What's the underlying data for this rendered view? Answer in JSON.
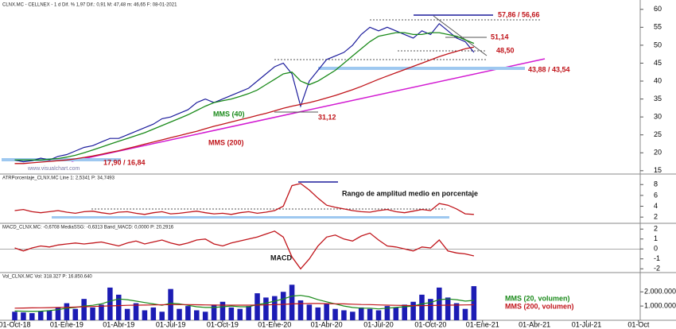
{
  "chart_data": [
    {
      "type": "line",
      "title": "CLNX.MC - CELLNEX - 1 d  Dif. % 1,97  Dif.: 0,91  M: 47,48  m: 46,65  F: 08-01-2021",
      "watermark": "www.visualchart.com",
      "ylim": [
        14.3,
        61.5
      ],
      "yticks": [
        15,
        20,
        25,
        30,
        35,
        40,
        45,
        50,
        55,
        60
      ],
      "annotations": [
        {
          "text": "57,86 / 56,66"
        },
        {
          "text": "51,14"
        },
        {
          "text": "48,50"
        },
        {
          "text": "43,88 / 43,54"
        },
        {
          "text": "31,12"
        },
        {
          "text": "17,90 / 16,84"
        },
        {
          "text": "MMS (40)"
        },
        {
          "text": "MMS (200)"
        }
      ],
      "series": [
        {
          "name": "CLNX.MC",
          "color": "#1c1c9c",
          "values": [
            18,
            17.5,
            17.8,
            18.5,
            18,
            19,
            19.5,
            20.5,
            21.5,
            22,
            23,
            24,
            24,
            25,
            26,
            27,
            28,
            29.5,
            30,
            31,
            32,
            34,
            35,
            34,
            35,
            36,
            37,
            38,
            40,
            42,
            44,
            45,
            42,
            33,
            40,
            43,
            46,
            47,
            48,
            50,
            53,
            55,
            54,
            55,
            54,
            53,
            52,
            54,
            53,
            56,
            54,
            52,
            51,
            48
          ]
        },
        {
          "name": "MMS (40)",
          "color": "#1a8a1a",
          "values": [
            18,
            18,
            18,
            18,
            18.2,
            18.4,
            18.8,
            19.3,
            20,
            20.8,
            21.6,
            22.4,
            23.2,
            24,
            24.8,
            25.6,
            26.6,
            27.6,
            28.6,
            29.6,
            30.6,
            31.8,
            33,
            34,
            34.5,
            35,
            35.7,
            36.5,
            37.5,
            39,
            40.5,
            42,
            42.5,
            40,
            39,
            40,
            41.5,
            43,
            45,
            47,
            49,
            51,
            52.5,
            53,
            53.5,
            53.5,
            53,
            53,
            53.5,
            53.5,
            53,
            52.5,
            51.5,
            50.5
          ]
        },
        {
          "name": "MMS (200)",
          "color": "#c0141a",
          "values": [
            17,
            17,
            17.2,
            17.4,
            17.6,
            17.8,
            18,
            18.3,
            18.7,
            19.1,
            19.6,
            20.1,
            20.6,
            21.2,
            21.8,
            22.4,
            23,
            23.6,
            24.2,
            24.8,
            25.4,
            26,
            26.7,
            27.4,
            28,
            28.6,
            29.2,
            29.8,
            30.4,
            31,
            31.7,
            32.4,
            33,
            33.5,
            34,
            34.6,
            35.3,
            36,
            36.8,
            37.6,
            38.5,
            39.5,
            40.5,
            41.4,
            42.3,
            43.2,
            44.1,
            45,
            45.9,
            46.8,
            47.6,
            48.3,
            49,
            49.5
          ]
        }
      ]
    },
    {
      "type": "line",
      "title": "ATRPorcentaje_CLNX.MC Line 1: 2,5341 P: 34,7493",
      "annotation": "Rango de amplitud medio en porcentaje",
      "ylim": [
        1,
        9.5
      ],
      "yticks": [
        2,
        4,
        6,
        8
      ],
      "series": [
        {
          "name": "ATRPorcentaje_CLNX.MC",
          "color": "#c0141a",
          "values": [
            3.2,
            3.4,
            3,
            2.8,
            3,
            3.2,
            2.9,
            2.7,
            3,
            3.1,
            2.8,
            2.6,
            2.9,
            3,
            2.7,
            2.5,
            2.8,
            3,
            2.6,
            2.7,
            2.9,
            3.1,
            2.8,
            2.6,
            2.7,
            2.5,
            2.8,
            3,
            2.7,
            2.9,
            3.2,
            4,
            7.8,
            8.2,
            7,
            5.5,
            4.2,
            3.8,
            3.5,
            3.2,
            3,
            2.9,
            3.2,
            3.4,
            3,
            2.8,
            3.1,
            3.4,
            3.2,
            4.5,
            4.2,
            3.5,
            2.6,
            2.5
          ]
        }
      ]
    },
    {
      "type": "line",
      "title": "MACD_CLNX.MC: -0,6708 MediaSSG: -0,6313 Band_MACD: 0,0000 P: 20,2916",
      "annotation": "MACD",
      "ylim": [
        -2.3,
        2.5
      ],
      "yticks": [
        -2,
        -1,
        0,
        1,
        2
      ],
      "series": [
        {
          "name": "MACD_CLNX.MC",
          "color": "#c0141a",
          "values": [
            0.1,
            -0.2,
            0.1,
            0.3,
            0.2,
            0.4,
            0.5,
            0.6,
            0.5,
            0.6,
            0.7,
            0.5,
            0.3,
            0.6,
            0.8,
            0.5,
            0.7,
            0.9,
            0.6,
            0.4,
            0.6,
            0.9,
            1.0,
            0.5,
            0.3,
            0.6,
            0.8,
            1.0,
            1.2,
            1.5,
            1.8,
            1.2,
            -0.8,
            -2,
            -1,
            0.3,
            1.2,
            1.4,
            1.0,
            0.8,
            1.3,
            1.6,
            0.9,
            0.3,
            0.2,
            0,
            -0.2,
            0.2,
            0.1,
            0.9,
            -0.2,
            -0.4,
            -0.5,
            -0.7
          ]
        }
      ]
    },
    {
      "type": "bar",
      "title": "Vol_CLNX.MC Vol: 318.327 P: 16.850.640",
      "ylim": [
        0,
        3300000
      ],
      "yticks": [
        {
          "value": 1000000,
          "label": "1.000.000"
        },
        {
          "value": 2000000,
          "label": "2.000.000"
        }
      ],
      "xlim": [
        -1.7,
        72.2
      ],
      "xticks": [
        {
          "value": 0,
          "label": "01-Oct-18"
        },
        {
          "value": 6,
          "label": "01-Ene-19"
        },
        {
          "value": 12,
          "label": "01-Abr-19"
        },
        {
          "value": 18,
          "label": "01-Jul-19"
        },
        {
          "value": 24,
          "label": "01-Oct-19"
        },
        {
          "value": 30,
          "label": "01-Ene-20"
        },
        {
          "value": 36,
          "label": "01-Abr-20"
        },
        {
          "value": 42,
          "label": "01-Jul-20"
        },
        {
          "value": 48,
          "label": "01-Oct-20"
        },
        {
          "value": 54,
          "label": "01-Ene-21"
        },
        {
          "value": 60,
          "label": "01-Abr-21"
        },
        {
          "value": 66,
          "label": "01-Jul-21"
        },
        {
          "value": 72,
          "label": "01-Oct"
        }
      ],
      "color": "#1c1cb4",
      "values": [
        600000,
        550000,
        500000,
        650000,
        700000,
        900000,
        1200000,
        800000,
        1500000,
        900000,
        1100000,
        2300000,
        1800000,
        800000,
        1200000,
        700000,
        900000,
        600000,
        2200000,
        800000,
        1000000,
        700000,
        600000,
        1100000,
        1300000,
        900000,
        800000,
        1000000,
        1900000,
        1600000,
        1700000,
        2000000,
        2500000,
        1400000,
        1100000,
        900000,
        1200000,
        800000,
        700000,
        600000,
        900000,
        800000,
        700000,
        1000000,
        900000,
        1100000,
        1300000,
        1800000,
        1500000,
        2300000,
        1600000,
        1200000,
        800000,
        2400000
      ],
      "series": [
        {
          "name": "MMS (20, volumen)",
          "color": "#1a8a1a",
          "values": [
            650000,
            640000,
            620000,
            640000,
            680000,
            750000,
            850000,
            900000,
            1000000,
            1050000,
            1150000,
            1350000,
            1500000,
            1450000,
            1350000,
            1250000,
            1150000,
            1050000,
            1200000,
            1150000,
            1050000,
            950000,
            900000,
            900000,
            950000,
            1000000,
            950000,
            950000,
            1100000,
            1200000,
            1350000,
            1500000,
            1700000,
            1750000,
            1650000,
            1450000,
            1300000,
            1150000,
            1000000,
            900000,
            850000,
            850000,
            800000,
            850000,
            900000,
            950000,
            1000000,
            1150000,
            1250000,
            1450000,
            1500000,
            1450000,
            1350000,
            1400000
          ]
        },
        {
          "name": "MMS (200, volumen)",
          "color": "#c0141a",
          "values": [
            850000,
            860000,
            870000,
            880000,
            890000,
            900000,
            910000,
            930000,
            950000,
            970000,
            990000,
            1010000,
            1030000,
            1050000,
            1060000,
            1070000,
            1080000,
            1090000,
            1100000,
            1100000,
            1100000,
            1090000,
            1080000,
            1070000,
            1060000,
            1060000,
            1060000,
            1060000,
            1070000,
            1080000,
            1100000,
            1120000,
            1150000,
            1170000,
            1180000,
            1180000,
            1170000,
            1160000,
            1150000,
            1130000,
            1110000,
            1100000,
            1080000,
            1060000,
            1050000,
            1040000,
            1030000,
            1030000,
            1040000,
            1050000,
            1060000,
            1070000,
            1080000,
            1090000
          ]
        }
      ]
    }
  ]
}
